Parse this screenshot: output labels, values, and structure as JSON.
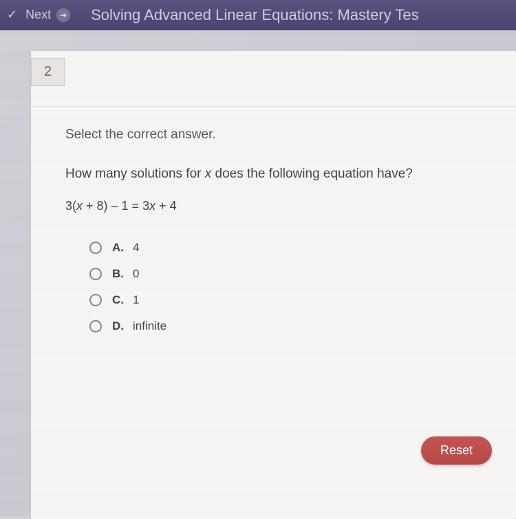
{
  "header": {
    "next_label": "Next",
    "title": "Solving Advanced Linear Equations: Mastery Tes"
  },
  "question": {
    "number": "2",
    "instruction": "Select the correct answer.",
    "prompt_prefix": "How many solutions for ",
    "prompt_var": "x",
    "prompt_suffix": " does the following equation have?",
    "equation_display": "3(x + 8) – 1 = 3x + 4",
    "options": [
      {
        "letter": "A.",
        "value": "4"
      },
      {
        "letter": "B.",
        "value": "0"
      },
      {
        "letter": "C.",
        "value": "1"
      },
      {
        "letter": "D.",
        "value": "infinite"
      }
    ]
  },
  "buttons": {
    "reset": "Reset"
  }
}
